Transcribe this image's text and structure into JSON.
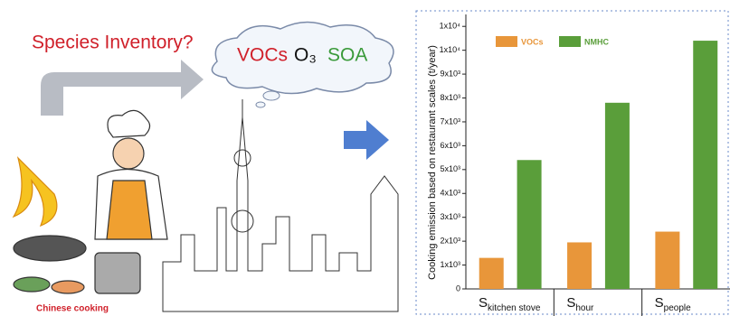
{
  "illustration": {
    "question": "Species Inventory?",
    "species": [
      "VOCs",
      "O₃",
      "SOA"
    ],
    "caption": "Chinese cooking"
  },
  "chart_data": {
    "type": "bar",
    "y_label": "Cooking emission based on restaurant scales (t/year)",
    "category_symbol": "S",
    "categories": [
      "kitchen stove",
      "hour",
      "people"
    ],
    "series": [
      {
        "name": "VOCs",
        "color": "#e8963a",
        "values": [
          1300,
          1950,
          2400
        ]
      },
      {
        "name": "NMHC",
        "color": "#5a9e3a",
        "values": [
          5400,
          7800,
          10400
        ]
      }
    ],
    "ylim": [
      0,
      11500
    ],
    "yticks": [
      0,
      {
        "value": 1000,
        "label": "1x10³"
      },
      {
        "value": 2000,
        "label": "2x10³"
      },
      {
        "value": 3000,
        "label": "3x10³"
      },
      {
        "value": 4000,
        "label": "4x10³"
      },
      {
        "value": 5000,
        "label": "5x10³"
      },
      {
        "value": 6000,
        "label": "6x10³"
      },
      {
        "value": 7000,
        "label": "7x10³"
      },
      {
        "value": 8000,
        "label": "8x10³"
      },
      {
        "value": 9000,
        "label": "9x10³"
      },
      {
        "value": 10000,
        "label": "1x10⁴"
      },
      {
        "value": 11000,
        "label": "1x10⁴"
      }
    ],
    "legend": "top-left"
  }
}
